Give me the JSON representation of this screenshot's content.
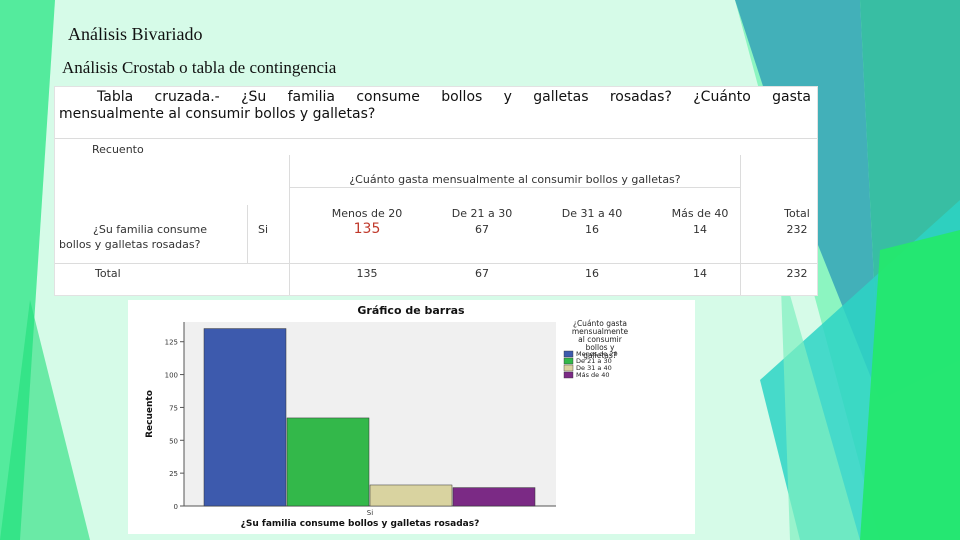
{
  "slide": {
    "title": "Análisis Bivariado",
    "subtitle": "Análisis Crostab o tabla de contingencia"
  },
  "crosstab": {
    "title_line1": "Tabla cruzada.- ¿Su familia consume bollos y galletas rosadas? ¿Cuánto gasta",
    "title_line2": "mensualmente al consumir bollos y galletas?",
    "count_label": "Recuento",
    "column_header": "¿Cuánto gasta mensualmente al consumir bollos y galletas?",
    "row_header_line1": "¿Su familia consume",
    "row_header_line2": "bollos y galletas rosadas?",
    "row_value": "Si",
    "total_row_label": "Total",
    "columns": [
      "Menos de 20",
      "De 21 a 30",
      "De 31 a 40",
      "Más de 40",
      "Total"
    ],
    "row_si": [
      "135",
      "67",
      "16",
      "14",
      "232"
    ],
    "row_total": [
      "135",
      "67",
      "16",
      "14",
      "232"
    ]
  },
  "colors": {
    "highlight_value": "#c0392b",
    "series": [
      "#3d5aad",
      "#33b84a",
      "#d9d3a0",
      "#7b2a85"
    ]
  },
  "chart_data": {
    "type": "bar",
    "title": "Gráfico de barras",
    "xlabel": "¿Su familia consume bollos y galletas rosadas?",
    "ylabel": "Recuento",
    "categories": [
      "Si"
    ],
    "legend_title_lines": [
      "¿Cuánto gasta",
      "mensualmente",
      "al consumir",
      "bollos y",
      "galletas?"
    ],
    "series": [
      {
        "name": "Menos de 20",
        "values": [
          135
        ]
      },
      {
        "name": "De 21 a 30",
        "values": [
          67
        ]
      },
      {
        "name": "De 31 a 40",
        "values": [
          16
        ]
      },
      {
        "name": "Más de 40",
        "values": [
          14
        ]
      }
    ],
    "yticks": [
      "0",
      "25",
      "50",
      "75",
      "100",
      "125"
    ],
    "ylim": [
      0,
      140
    ],
    "grid": false,
    "legend": "right"
  }
}
